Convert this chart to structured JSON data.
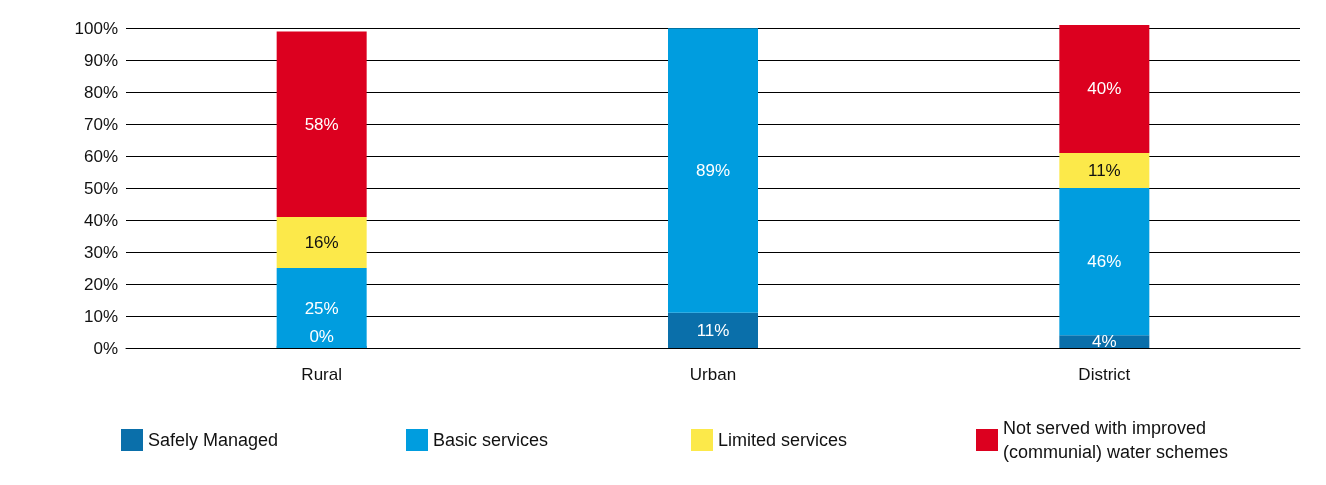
{
  "chart_data": {
    "type": "bar",
    "stacked": true,
    "categories": [
      "Rural",
      "Urban",
      "District"
    ],
    "series": [
      {
        "name": "Safely Managed",
        "color": "#0a6faa",
        "values": [
          0,
          11,
          4
        ],
        "value_labels": [
          "0%",
          "11%",
          "4%"
        ]
      },
      {
        "name": "Basic services",
        "color": "#009ddf",
        "values": [
          25,
          89,
          46
        ],
        "value_labels": [
          "25%",
          "89%",
          "46%"
        ]
      },
      {
        "name": "Limited services",
        "color": "#fce94a",
        "values": [
          16,
          null,
          11
        ],
        "value_labels": [
          "16%",
          null,
          "11%"
        ]
      },
      {
        "name": "Not served with improved (communial) water schemes",
        "color": "#dc001f",
        "values": [
          58,
          null,
          40
        ],
        "value_labels": [
          "58%",
          null,
          "40%"
        ]
      }
    ],
    "ylim": [
      0,
      101
    ],
    "yticks": [
      {
        "value": 0,
        "label": "0%"
      },
      {
        "value": 10,
        "label": "10%"
      },
      {
        "value": 20,
        "label": "20%"
      },
      {
        "value": 30,
        "label": "30%"
      },
      {
        "value": 40,
        "label": "40%"
      },
      {
        "value": 50,
        "label": "50%"
      },
      {
        "value": 60,
        "label": "60%"
      },
      {
        "value": 70,
        "label": "70%"
      },
      {
        "value": 80,
        "label": "80%"
      },
      {
        "value": 90,
        "label": "90%"
      },
      {
        "value": 100,
        "label": "100%"
      }
    ],
    "grid": "y",
    "legend": "bottom"
  }
}
